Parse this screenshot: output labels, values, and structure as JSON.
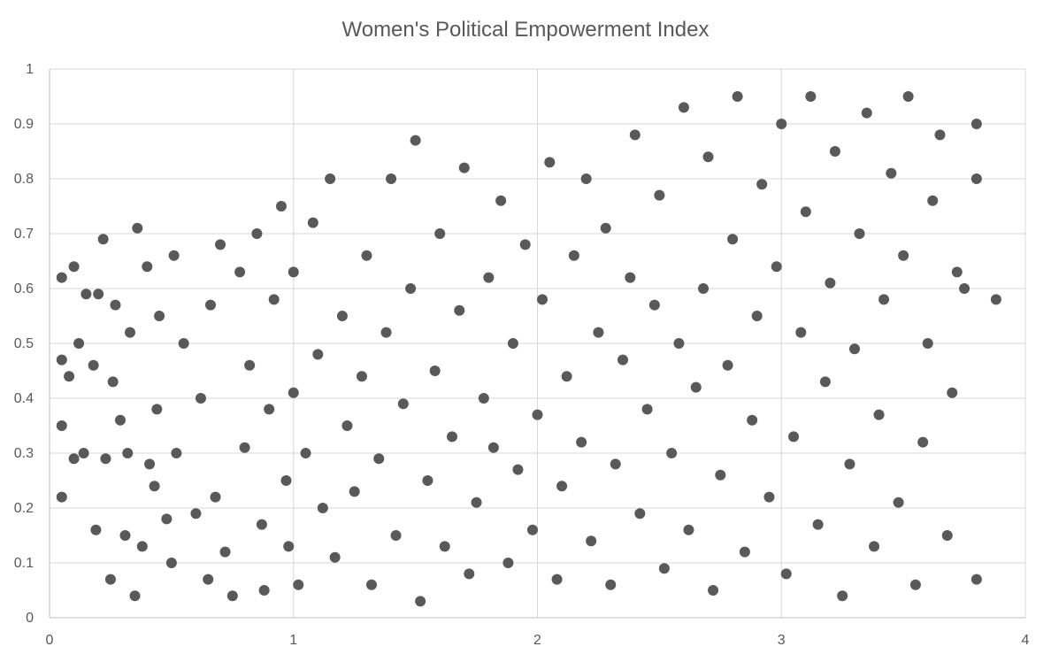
{
  "chart_data": {
    "type": "scatter",
    "title": "Women's Political Empowerment Index",
    "xlabel": "",
    "ylabel": "",
    "xlim": [
      0,
      4
    ],
    "ylim": [
      0,
      1
    ],
    "x_ticks": [
      "0",
      "1",
      "2",
      "3",
      "4"
    ],
    "y_ticks": [
      "0",
      "0.1",
      "0.2",
      "0.3",
      "0.4",
      "0.5",
      "0.6",
      "0.7",
      "0.8",
      "0.9",
      "1"
    ],
    "grid": true,
    "legend": "none",
    "marker_color": "#595959",
    "series": [
      {
        "points": [
          [
            0.05,
            0.22
          ],
          [
            0.05,
            0.35
          ],
          [
            0.05,
            0.47
          ],
          [
            0.05,
            0.62
          ],
          [
            0.08,
            0.44
          ],
          [
            0.1,
            0.29
          ],
          [
            0.1,
            0.64
          ],
          [
            0.12,
            0.5
          ],
          [
            0.14,
            0.3
          ],
          [
            0.15,
            0.59
          ],
          [
            0.18,
            0.46
          ],
          [
            0.19,
            0.16
          ],
          [
            0.2,
            0.59
          ],
          [
            0.22,
            0.69
          ],
          [
            0.23,
            0.29
          ],
          [
            0.25,
            0.07
          ],
          [
            0.26,
            0.43
          ],
          [
            0.27,
            0.57
          ],
          [
            0.29,
            0.36
          ],
          [
            0.31,
            0.15
          ],
          [
            0.32,
            0.3
          ],
          [
            0.33,
            0.52
          ],
          [
            0.35,
            0.04
          ],
          [
            0.36,
            0.71
          ],
          [
            0.38,
            0.13
          ],
          [
            0.4,
            0.64
          ],
          [
            0.41,
            0.28
          ],
          [
            0.43,
            0.24
          ],
          [
            0.44,
            0.38
          ],
          [
            0.45,
            0.55
          ],
          [
            0.48,
            0.18
          ],
          [
            0.5,
            0.1
          ],
          [
            0.51,
            0.66
          ],
          [
            0.52,
            0.3
          ],
          [
            0.55,
            0.5
          ],
          [
            0.6,
            0.19
          ],
          [
            0.62,
            0.4
          ],
          [
            0.65,
            0.07
          ],
          [
            0.66,
            0.57
          ],
          [
            0.68,
            0.22
          ],
          [
            0.7,
            0.68
          ],
          [
            0.72,
            0.12
          ],
          [
            0.75,
            0.04
          ],
          [
            0.78,
            0.63
          ],
          [
            0.8,
            0.31
          ],
          [
            0.82,
            0.46
          ],
          [
            0.85,
            0.7
          ],
          [
            0.87,
            0.17
          ],
          [
            0.88,
            0.05
          ],
          [
            0.9,
            0.38
          ],
          [
            0.92,
            0.58
          ],
          [
            0.95,
            0.75
          ],
          [
            0.97,
            0.25
          ],
          [
            0.98,
            0.13
          ],
          [
            1.0,
            0.41
          ],
          [
            1.0,
            0.63
          ],
          [
            1.02,
            0.06
          ],
          [
            1.05,
            0.3
          ],
          [
            1.08,
            0.72
          ],
          [
            1.1,
            0.48
          ],
          [
            1.12,
            0.2
          ],
          [
            1.15,
            0.8
          ],
          [
            1.17,
            0.11
          ],
          [
            1.2,
            0.55
          ],
          [
            1.22,
            0.35
          ],
          [
            1.25,
            0.23
          ],
          [
            1.28,
            0.44
          ],
          [
            1.3,
            0.66
          ],
          [
            1.32,
            0.06
          ],
          [
            1.35,
            0.29
          ],
          [
            1.38,
            0.52
          ],
          [
            1.4,
            0.8
          ],
          [
            1.42,
            0.15
          ],
          [
            1.45,
            0.39
          ],
          [
            1.48,
            0.6
          ],
          [
            1.5,
            0.87
          ],
          [
            1.52,
            0.03
          ],
          [
            1.55,
            0.25
          ],
          [
            1.58,
            0.45
          ],
          [
            1.6,
            0.7
          ],
          [
            1.62,
            0.13
          ],
          [
            1.65,
            0.33
          ],
          [
            1.68,
            0.56
          ],
          [
            1.7,
            0.82
          ],
          [
            1.72,
            0.08
          ],
          [
            1.75,
            0.21
          ],
          [
            1.78,
            0.4
          ],
          [
            1.8,
            0.62
          ],
          [
            1.82,
            0.31
          ],
          [
            1.85,
            0.76
          ],
          [
            1.88,
            0.1
          ],
          [
            1.9,
            0.5
          ],
          [
            1.92,
            0.27
          ],
          [
            1.95,
            0.68
          ],
          [
            1.98,
            0.16
          ],
          [
            2.0,
            0.37
          ],
          [
            2.02,
            0.58
          ],
          [
            2.05,
            0.83
          ],
          [
            2.08,
            0.07
          ],
          [
            2.1,
            0.24
          ],
          [
            2.12,
            0.44
          ],
          [
            2.15,
            0.66
          ],
          [
            2.18,
            0.32
          ],
          [
            2.2,
            0.8
          ],
          [
            2.22,
            0.14
          ],
          [
            2.25,
            0.52
          ],
          [
            2.28,
            0.71
          ],
          [
            2.3,
            0.06
          ],
          [
            2.32,
            0.28
          ],
          [
            2.35,
            0.47
          ],
          [
            2.38,
            0.62
          ],
          [
            2.4,
            0.88
          ],
          [
            2.42,
            0.19
          ],
          [
            2.45,
            0.38
          ],
          [
            2.48,
            0.57
          ],
          [
            2.5,
            0.77
          ],
          [
            2.52,
            0.09
          ],
          [
            2.55,
            0.3
          ],
          [
            2.58,
            0.5
          ],
          [
            2.6,
            0.93
          ],
          [
            2.62,
            0.16
          ],
          [
            2.65,
            0.42
          ],
          [
            2.68,
            0.6
          ],
          [
            2.7,
            0.84
          ],
          [
            2.72,
            0.05
          ],
          [
            2.75,
            0.26
          ],
          [
            2.78,
            0.46
          ],
          [
            2.8,
            0.69
          ],
          [
            2.82,
            0.95
          ],
          [
            2.85,
            0.12
          ],
          [
            2.88,
            0.36
          ],
          [
            2.9,
            0.55
          ],
          [
            2.92,
            0.79
          ],
          [
            2.95,
            0.22
          ],
          [
            2.98,
            0.64
          ],
          [
            3.0,
            0.9
          ],
          [
            3.02,
            0.08
          ],
          [
            3.05,
            0.33
          ],
          [
            3.08,
            0.52
          ],
          [
            3.1,
            0.74
          ],
          [
            3.12,
            0.95
          ],
          [
            3.15,
            0.17
          ],
          [
            3.18,
            0.43
          ],
          [
            3.2,
            0.61
          ],
          [
            3.22,
            0.85
          ],
          [
            3.25,
            0.04
          ],
          [
            3.28,
            0.28
          ],
          [
            3.3,
            0.49
          ],
          [
            3.32,
            0.7
          ],
          [
            3.35,
            0.92
          ],
          [
            3.38,
            0.13
          ],
          [
            3.4,
            0.37
          ],
          [
            3.42,
            0.58
          ],
          [
            3.45,
            0.81
          ],
          [
            3.48,
            0.21
          ],
          [
            3.5,
            0.66
          ],
          [
            3.52,
            0.95
          ],
          [
            3.55,
            0.06
          ],
          [
            3.58,
            0.32
          ],
          [
            3.6,
            0.5
          ],
          [
            3.62,
            0.76
          ],
          [
            3.65,
            0.88
          ],
          [
            3.68,
            0.15
          ],
          [
            3.7,
            0.41
          ],
          [
            3.72,
            0.63
          ],
          [
            3.75,
            0.6
          ],
          [
            3.8,
            0.07
          ],
          [
            3.8,
            0.8
          ],
          [
            3.8,
            0.9
          ],
          [
            3.88,
            0.58
          ]
        ]
      }
    ]
  }
}
